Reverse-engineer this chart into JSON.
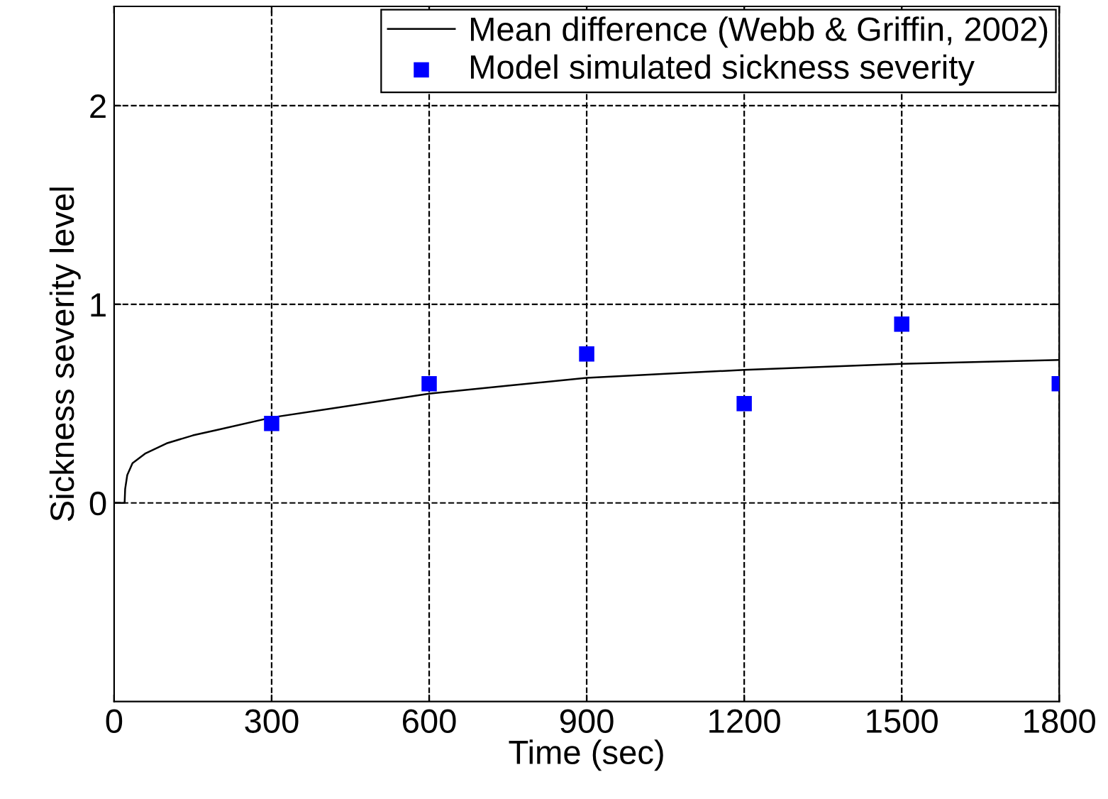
{
  "chart_data": {
    "type": "line",
    "xlabel": "Time (sec)",
    "ylabel": "Sickness severity level",
    "xlim": [
      0,
      1800
    ],
    "xticks": [
      0,
      300,
      600,
      900,
      1200,
      1500,
      1800
    ],
    "ylim": [
      -1,
      2.5
    ],
    "yticks": [
      0,
      1,
      2
    ],
    "grid": true,
    "legend": "top right",
    "series": [
      {
        "name": "Mean difference (Webb & Griffin, 2002)",
        "color": "#000000",
        "marker": "none",
        "line_style": "solid",
        "x": [
          0,
          20,
          21,
          25,
          35,
          60,
          100,
          150,
          200,
          300,
          400,
          500,
          600,
          750,
          900,
          1050,
          1200,
          1350,
          1500,
          1650,
          1800
        ],
        "values": [
          0,
          0,
          0.07,
          0.14,
          0.2,
          0.25,
          0.3,
          0.34,
          0.37,
          0.43,
          0.47,
          0.51,
          0.55,
          0.59,
          0.63,
          0.65,
          0.67,
          0.685,
          0.7,
          0.71,
          0.72
        ]
      },
      {
        "name": "Model simulated sickness severity",
        "type": "scatter",
        "color": "#0000ff",
        "marker": "square",
        "x": [
          300,
          600,
          900,
          1200,
          1500,
          1800
        ],
        "values": [
          0.4,
          0.6,
          0.75,
          0.5,
          0.9,
          0.6
        ]
      }
    ]
  }
}
